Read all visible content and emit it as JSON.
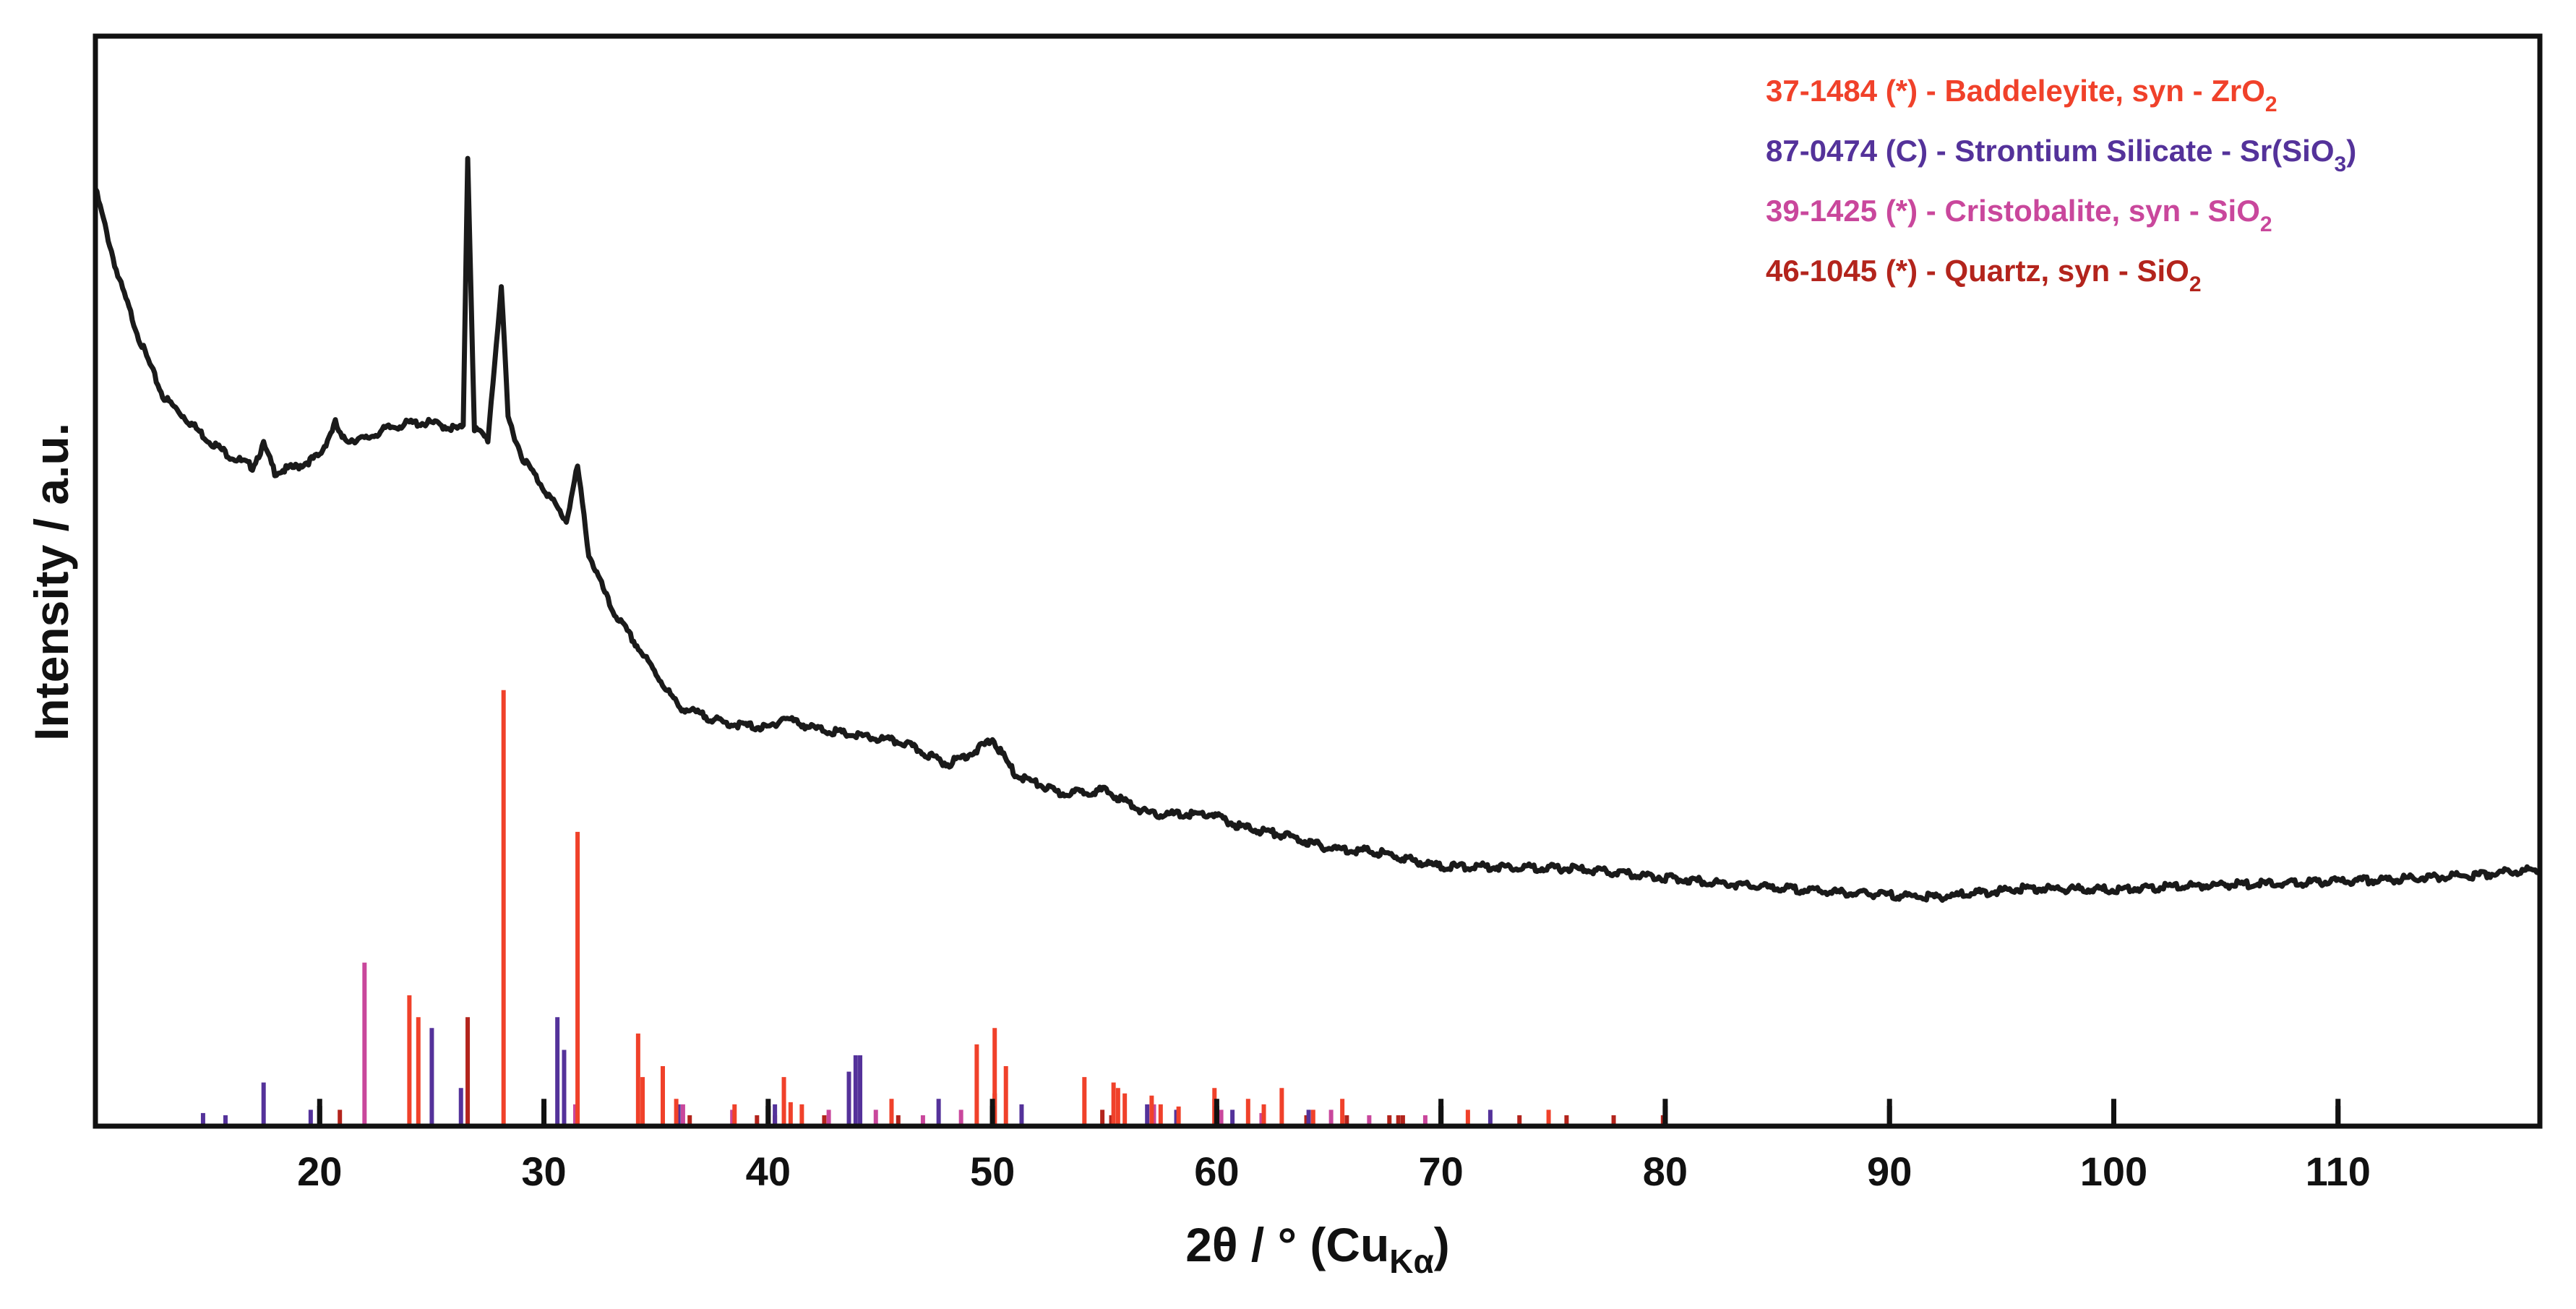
{
  "chart_data": {
    "type": "line",
    "xlabel": {
      "main": "2θ / ° (Cu",
      "sub": "Kα",
      "close": ")"
    },
    "ylabel": "Intensity / a.u.",
    "xlim": [
      10,
      119
    ],
    "ylim": [
      0,
      100
    ],
    "x_ticks": [
      20,
      30,
      40,
      50,
      60,
      70,
      80,
      90,
      100,
      110
    ],
    "legend_position": "top-right",
    "colors": {
      "pattern": "#1a1a1a",
      "baddeleyite": "#f0412a",
      "strontium_silicate": "#54329a",
      "cristobalite": "#c9479c",
      "quartz": "#b3241c"
    },
    "legend": [
      {
        "key": "baddeleyite",
        "text": "37-1484 (*) - Baddeleyite, syn - ZrO",
        "sub": "2",
        "after": ""
      },
      {
        "key": "strontium_silicate",
        "text": "87-0474 (C) - Strontium Silicate - Sr(SiO",
        "sub": "3",
        "after": ")"
      },
      {
        "key": "cristobalite",
        "text": "39-1425 (*) - Cristobalite, syn - SiO",
        "sub": "2",
        "after": ""
      },
      {
        "key": "quartz",
        "text": "46-1045 (*) - Quartz, syn - SiO",
        "sub": "2",
        "after": ""
      }
    ],
    "series": [
      {
        "key": "pattern",
        "x": [
          10,
          11,
          12,
          13,
          14,
          15,
          16,
          17,
          17.5,
          18,
          19,
          20,
          20.7,
          21,
          22,
          23,
          24,
          25,
          26,
          26.4,
          26.6,
          26.9,
          27.5,
          28.1,
          28.4,
          29,
          30,
          31,
          31.5,
          32,
          33,
          34,
          35,
          36,
          38,
          40,
          40.7,
          42,
          44,
          46,
          48,
          49.3,
          50,
          51,
          53,
          55,
          57,
          59.8,
          61,
          63,
          65,
          67,
          70,
          73,
          76,
          80,
          84,
          88,
          92,
          96,
          100,
          104,
          108,
          112,
          116,
          119
        ],
        "y": [
          86,
          78,
          72,
          67,
          65,
          63,
          61.5,
          60.5,
          62.5,
          60,
          60.5,
          61.5,
          64.5,
          63,
          63,
          64,
          64.5,
          64.5,
          64,
          64,
          89,
          64,
          63,
          77,
          65,
          61.5,
          58.5,
          55.5,
          60.5,
          52.5,
          47.5,
          44.5,
          41.5,
          38.5,
          37,
          36.5,
          37.5,
          36.5,
          35.8,
          35.2,
          33.2,
          34.5,
          35.5,
          32.3,
          30.5,
          30.8,
          28.6,
          28.6,
          27.5,
          26.7,
          25.5,
          25.2,
          23.8,
          23.8,
          23.6,
          22.8,
          22,
          21.4,
          21,
          21.8,
          21.7,
          22.1,
          22.3,
          22.6,
          23,
          23.6
        ]
      }
    ],
    "reference_lines": {
      "baddeleyite": {
        "x": [
          24.0,
          24.4,
          28.2,
          31.5,
          34.2,
          34.4,
          35.3,
          35.9,
          38.5,
          40.7,
          41.0,
          41.5,
          45.5,
          49.3,
          50.1,
          50.6,
          54.1,
          55.4,
          55.6,
          55.9,
          57.1,
          57.5,
          58.3,
          59.9,
          61.4,
          62.1,
          62.9,
          64.3,
          65.6,
          71.2,
          74.8
        ],
        "y": [
          12,
          10,
          40,
          27,
          8.5,
          4.5,
          5.5,
          2.5,
          2,
          4.5,
          2.2,
          2,
          2.5,
          7.5,
          9,
          5.5,
          4.5,
          4,
          3.5,
          3,
          2.8,
          2,
          1.8,
          3.5,
          2.5,
          2,
          3.5,
          1.5,
          2.5,
          1.5,
          1.5
        ]
      },
      "strontium_silicate": {
        "x": [
          14.8,
          15.8,
          17.5,
          19.6,
          25.0,
          26.3,
          30.6,
          30.9,
          36.0,
          40.3,
          43.6,
          43.9,
          44.1,
          47.6,
          51.3,
          56.9,
          58.2,
          60.7,
          64.1,
          72.2
        ],
        "y": [
          1.2,
          1,
          4,
          1.5,
          9,
          3.5,
          10,
          7,
          2,
          2,
          5,
          6.5,
          6.5,
          2.5,
          2,
          2,
          1.5,
          1.5,
          1.5,
          1.5
        ]
      },
      "cristobalite": {
        "x": [
          22.0,
          31.4,
          36.2,
          38.4,
          42.7,
          44.8,
          46.9,
          48.6,
          57.2,
          60.2,
          62.0,
          65.1,
          66.8,
          69.3
        ],
        "y": [
          15,
          2,
          2,
          1.5,
          1.5,
          1.5,
          1,
          1.5,
          2,
          1.5,
          1.2,
          1.5,
          1,
          1
        ]
      },
      "quartz": {
        "x": [
          20.9,
          26.6,
          36.5,
          39.5,
          40.3,
          42.5,
          45.8,
          50.1,
          54.9,
          55.3,
          59.9,
          64.0,
          65.8,
          67.7,
          68.1,
          68.3,
          73.5,
          75.6,
          77.7,
          79.9
        ],
        "y": [
          1.5,
          10,
          1,
          1,
          1,
          1,
          1,
          3,
          1.5,
          1,
          2.5,
          1,
          1,
          1,
          1,
          1,
          1,
          1,
          1,
          1
        ]
      },
      "black_markers": {
        "x": [
          20,
          30,
          40,
          50,
          60,
          70,
          80,
          90,
          100,
          110
        ],
        "y": [
          2.5,
          2.5,
          2.5,
          2.5,
          2.5,
          2.5,
          2.5,
          2.5,
          2.5,
          2.5
        ]
      }
    }
  }
}
